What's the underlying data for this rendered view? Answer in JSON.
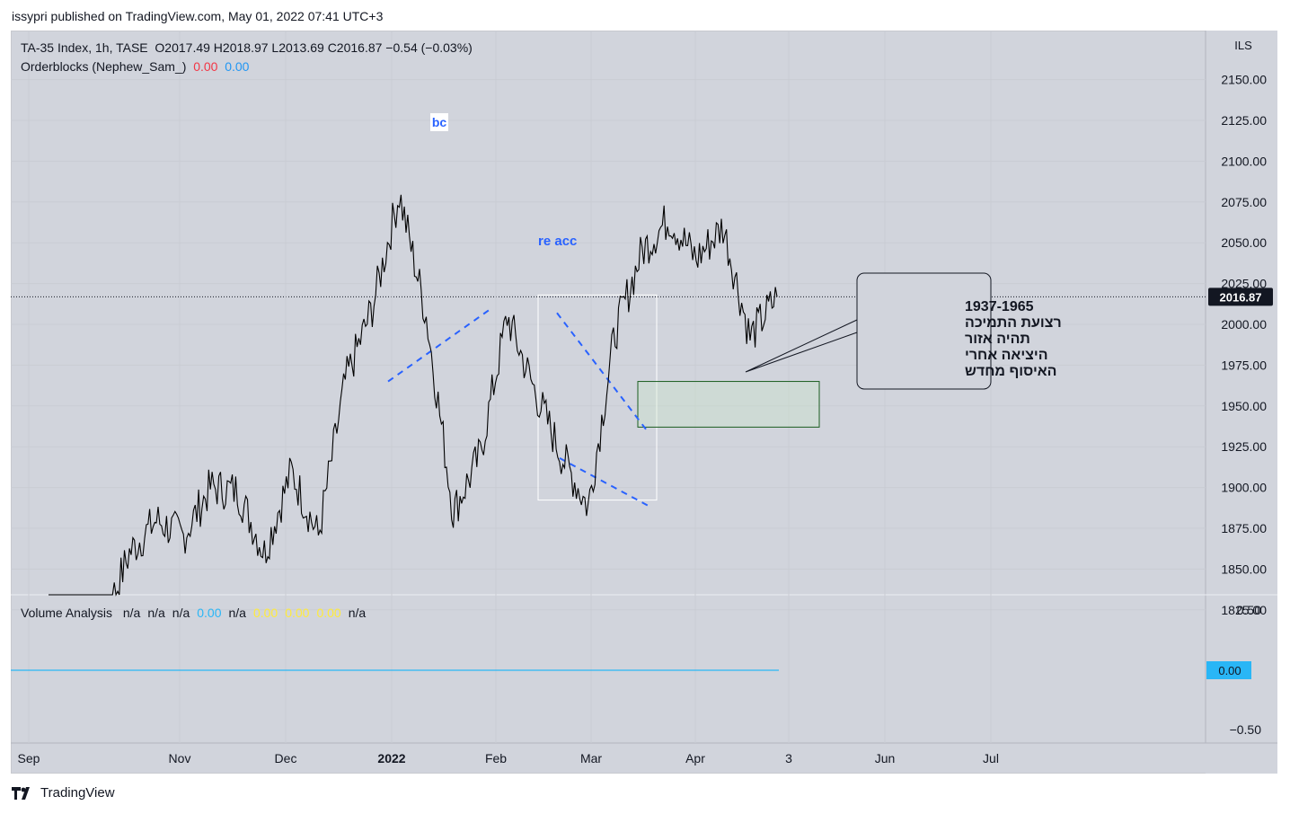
{
  "attribution": "issypri published on TradingView.com, May 01, 2022 07:41 UTC+3",
  "legend": {
    "symbol": "TA-35 Index, 1h, TASE",
    "ohlc": "O2017.49  H2018.97  L2013.69  C2016.87  −0.54 (−0.03%)",
    "orderblocks_name": "Orderblocks (Nephew_Sam_)",
    "ob_val1": "0.00",
    "ob_val2": "0.00"
  },
  "volume_legend": {
    "name": "Volume Analysis",
    "items": [
      {
        "text": "n/a",
        "color": "#131722"
      },
      {
        "text": "n/a",
        "color": "#131722"
      },
      {
        "text": "n/a",
        "color": "#131722"
      },
      {
        "text": "0.00",
        "color": "#29b6f6"
      },
      {
        "text": "n/a",
        "color": "#131722"
      },
      {
        "text": "0.00",
        "color": "#ffeb3b"
      },
      {
        "text": "0.00",
        "color": "#ffeb3b"
      },
      {
        "text": "0.00",
        "color": "#ffeb3b"
      },
      {
        "text": "n/a",
        "color": "#131722"
      }
    ]
  },
  "annotations": {
    "bc": "bc",
    "re_acc": "re acc",
    "callout_lines": [
      "1937-1965",
      "רצועת התמיכה",
      "תהיה אזור",
      "היציאה אחרי",
      "האיסוף מחדש"
    ]
  },
  "footer": {
    "logo_text": "TradingView"
  },
  "chart_data": {
    "type": "line",
    "currency": "ILS",
    "title": "",
    "price_axis": {
      "ticks": [
        2150,
        2125,
        2100,
        2075,
        2050,
        2025,
        2000,
        1975,
        1950,
        1925,
        1900,
        1875,
        1850,
        1825
      ],
      "tick_labels": [
        "2150.00",
        "2125.00",
        "2100.00",
        "2075.00",
        "2050.00",
        "2025.00",
        "2000.00",
        "1975.00",
        "1950.00",
        "1925.00",
        "1900.00",
        "1875.00",
        "1850.00",
        "1825.00"
      ],
      "last_price_label": "2016.87",
      "last_price": 2016.87
    },
    "time_axis": {
      "labels": [
        "Sep",
        "Nov",
        "Dec",
        "2022",
        "Feb",
        "Mar",
        "Apr",
        "3",
        "Jun",
        "Jul"
      ]
    },
    "indicator_axis": {
      "tick_labels": [
        "0.50",
        "0.00",
        "−0.50"
      ],
      "current_label": "0.00"
    },
    "series": [
      {
        "values_approx": [
          [
            "Sep",
            1815
          ],
          [
            "late Sep",
            1820
          ],
          [
            "early Oct",
            1815
          ],
          [
            "mid Oct",
            1860
          ],
          [
            "late Oct",
            1880
          ],
          [
            "Nov",
            1870
          ],
          [
            "mid Nov",
            1900
          ],
          [
            "late Nov",
            1898
          ],
          [
            "early Dec",
            1860
          ],
          [
            "mid Dec",
            1910
          ],
          [
            "late Dec",
            1870
          ],
          [
            "early 2022",
            1965
          ],
          [
            "mid Jan",
            2010
          ],
          [
            "Jan peak",
            2080
          ],
          [
            "late Jan",
            2005
          ],
          [
            "Jan low",
            1885
          ],
          [
            "early Feb",
            1920
          ],
          [
            "mid Feb",
            2005
          ],
          [
            "late Feb",
            1960
          ],
          [
            "early Mar",
            1920
          ],
          [
            "Mar low",
            1888
          ],
          [
            "late Mar",
            1995
          ],
          [
            "early Apr",
            2045
          ],
          [
            "Apr high",
            2065
          ],
          [
            "mid Apr",
            2040
          ],
          [
            "Apr high 2",
            2060
          ],
          [
            "late Apr",
            1992
          ],
          [
            "close",
            2016.87
          ]
        ]
      }
    ],
    "drawings": {
      "rectangle_range": [
        1900,
        2018
      ],
      "support_zone": [
        1937,
        1965
      ]
    }
  }
}
